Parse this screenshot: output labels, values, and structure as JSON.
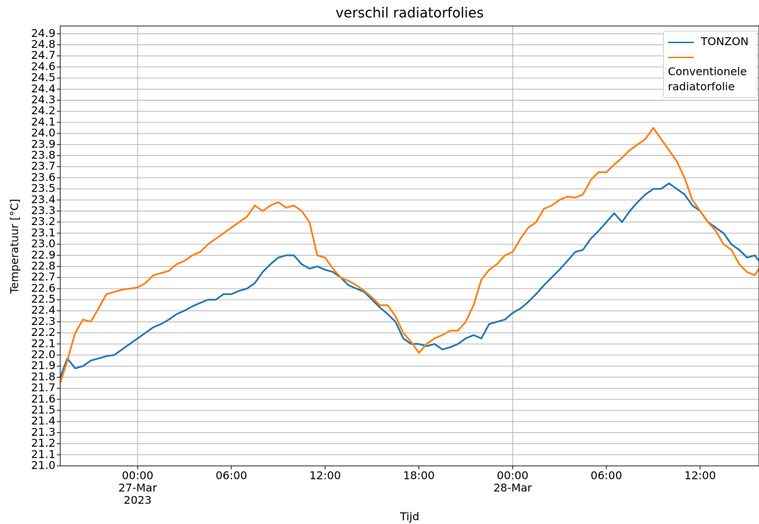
{
  "chart_data": {
    "type": "line",
    "title": "verschil radiatorfolies",
    "x_label": "Tijd",
    "y_label": "Temperatuur [°C]",
    "x": [
      "2023-03-26 19:03",
      "2023-03-26 19:30",
      "2023-03-26 20:00",
      "2023-03-26 20:30",
      "2023-03-26 21:00",
      "2023-03-26 21:30",
      "2023-03-26 22:00",
      "2023-03-26 22:30",
      "2023-03-26 23:00",
      "2023-03-26 23:30",
      "2023-03-27 00:00",
      "2023-03-27 00:30",
      "2023-03-27 01:00",
      "2023-03-27 01:30",
      "2023-03-27 02:00",
      "2023-03-27 02:30",
      "2023-03-27 03:00",
      "2023-03-27 03:30",
      "2023-03-27 04:00",
      "2023-03-27 04:30",
      "2023-03-27 05:00",
      "2023-03-27 05:30",
      "2023-03-27 06:00",
      "2023-03-27 06:30",
      "2023-03-27 07:00",
      "2023-03-27 07:30",
      "2023-03-27 08:00",
      "2023-03-27 08:30",
      "2023-03-27 09:00",
      "2023-03-27 09:30",
      "2023-03-27 10:00",
      "2023-03-27 10:30",
      "2023-03-27 11:00",
      "2023-03-27 11:30",
      "2023-03-27 12:00",
      "2023-03-27 12:30",
      "2023-03-27 13:00",
      "2023-03-27 13:30",
      "2023-03-27 14:00",
      "2023-03-27 14:30",
      "2023-03-27 15:00",
      "2023-03-27 15:30",
      "2023-03-27 16:00",
      "2023-03-27 16:30",
      "2023-03-27 17:00",
      "2023-03-27 17:30",
      "2023-03-27 18:00",
      "2023-03-27 18:30",
      "2023-03-27 19:00",
      "2023-03-27 19:30",
      "2023-03-27 20:00",
      "2023-03-27 20:30",
      "2023-03-27 21:00",
      "2023-03-27 21:30",
      "2023-03-27 22:00",
      "2023-03-27 22:30",
      "2023-03-27 23:00",
      "2023-03-27 23:30",
      "2023-03-28 00:00",
      "2023-03-28 00:30",
      "2023-03-28 01:00",
      "2023-03-28 01:30",
      "2023-03-28 02:00",
      "2023-03-28 02:30",
      "2023-03-28 03:00",
      "2023-03-28 03:30",
      "2023-03-28 04:00",
      "2023-03-28 04:30",
      "2023-03-28 05:00",
      "2023-03-28 05:30",
      "2023-03-28 06:00",
      "2023-03-28 06:30",
      "2023-03-28 07:00",
      "2023-03-28 07:30",
      "2023-03-28 08:00",
      "2023-03-28 08:30",
      "2023-03-28 09:00",
      "2023-03-28 09:30",
      "2023-03-28 10:00",
      "2023-03-28 10:30",
      "2023-03-28 11:00",
      "2023-03-28 11:30",
      "2023-03-28 12:00",
      "2023-03-28 12:30",
      "2023-03-28 13:00",
      "2023-03-28 13:30",
      "2023-03-28 14:00",
      "2023-03-28 14:30",
      "2023-03-28 15:00",
      "2023-03-28 15:30",
      "2023-03-28 15:46"
    ],
    "series": [
      {
        "name": "TONZON",
        "color": "#1f77b4",
        "values": [
          21.8,
          21.97,
          21.88,
          21.9,
          21.95,
          21.97,
          21.99,
          22.0,
          22.05,
          22.1,
          22.15,
          22.2,
          22.25,
          22.28,
          22.32,
          22.37,
          22.4,
          22.44,
          22.47,
          22.5,
          22.5,
          22.55,
          22.55,
          22.58,
          22.6,
          22.65,
          22.75,
          22.82,
          22.88,
          22.9,
          22.9,
          22.82,
          22.78,
          22.8,
          22.77,
          22.75,
          22.7,
          22.63,
          22.6,
          22.57,
          22.5,
          22.43,
          22.37,
          22.3,
          22.15,
          22.1,
          22.1,
          22.08,
          22.1,
          22.05,
          22.07,
          22.1,
          22.15,
          22.18,
          22.15,
          22.28,
          22.3,
          22.32,
          22.38,
          22.42,
          22.48,
          22.55,
          22.63,
          22.7,
          22.77,
          22.85,
          22.93,
          22.95,
          23.05,
          23.12,
          23.2,
          23.28,
          23.2,
          23.3,
          23.38,
          23.45,
          23.5,
          23.5,
          23.55,
          23.5,
          23.45,
          23.35,
          23.3,
          23.2,
          23.15,
          23.1,
          23.0,
          22.95,
          22.88,
          22.9,
          22.85
        ]
      },
      {
        "name": "Conventionele radiatorfolie",
        "color": "#ff7f0e",
        "values": [
          21.75,
          21.95,
          22.2,
          22.32,
          22.3,
          22.42,
          22.55,
          22.57,
          22.59,
          22.6,
          22.61,
          22.65,
          22.72,
          22.74,
          22.76,
          22.82,
          22.85,
          22.9,
          22.93,
          23.0,
          23.05,
          23.1,
          23.15,
          23.2,
          23.25,
          23.35,
          23.3,
          23.35,
          23.38,
          23.33,
          23.35,
          23.3,
          23.2,
          22.9,
          22.88,
          22.78,
          22.7,
          22.67,
          22.63,
          22.58,
          22.52,
          22.45,
          22.45,
          22.35,
          22.2,
          22.12,
          22.02,
          22.1,
          22.15,
          22.18,
          22.22,
          22.22,
          22.3,
          22.45,
          22.68,
          22.77,
          22.82,
          22.9,
          22.93,
          23.05,
          23.15,
          23.2,
          23.32,
          23.35,
          23.4,
          23.43,
          23.42,
          23.45,
          23.58,
          23.65,
          23.65,
          23.72,
          23.78,
          23.85,
          23.9,
          23.95,
          24.05,
          23.95,
          23.85,
          23.75,
          23.6,
          23.4,
          23.3,
          23.2,
          23.12,
          23.0,
          22.95,
          22.82,
          22.75,
          22.72,
          22.78
        ]
      }
    ],
    "xlim": [
      "2023-03-26 19:03",
      "2023-03-28 15:46"
    ],
    "xticks": [
      {
        "value": "2023-03-27 00:00",
        "label": [
          "00:00",
          "27-Mar",
          "2023"
        ]
      },
      {
        "value": "2023-03-27 06:00",
        "label": [
          "06:00"
        ]
      },
      {
        "value": "2023-03-27 12:00",
        "label": [
          "12:00"
        ]
      },
      {
        "value": "2023-03-27 18:00",
        "label": [
          "18:00"
        ]
      },
      {
        "value": "2023-03-28 00:00",
        "label": [
          "00:00",
          "28-Mar"
        ]
      },
      {
        "value": "2023-03-28 06:00",
        "label": [
          "06:00"
        ]
      },
      {
        "value": "2023-03-28 12:00",
        "label": [
          "12:00"
        ]
      }
    ],
    "ylim": [
      21.0,
      24.97
    ],
    "yticks": [
      {
        "value": 21,
        "label": "21.0"
      },
      21.1,
      21.2,
      21.3,
      21.4,
      21.5,
      21.6,
      21.7,
      21.8,
      21.9,
      {
        "value": 22,
        "label": "22.0"
      },
      22.1,
      22.2,
      22.3,
      22.4,
      22.5,
      22.6,
      22.7,
      22.8,
      22.9,
      {
        "value": 23,
        "label": "23.0"
      },
      23.1,
      23.2,
      23.3,
      23.4,
      23.5,
      23.6,
      23.7,
      23.8,
      23.9,
      {
        "value": 24,
        "label": "24.0"
      },
      24.1,
      24.2,
      24.3,
      24.4,
      24.5,
      24.6,
      24.7,
      24.8,
      24.9
    ],
    "grid": true,
    "legend": "upper right"
  }
}
